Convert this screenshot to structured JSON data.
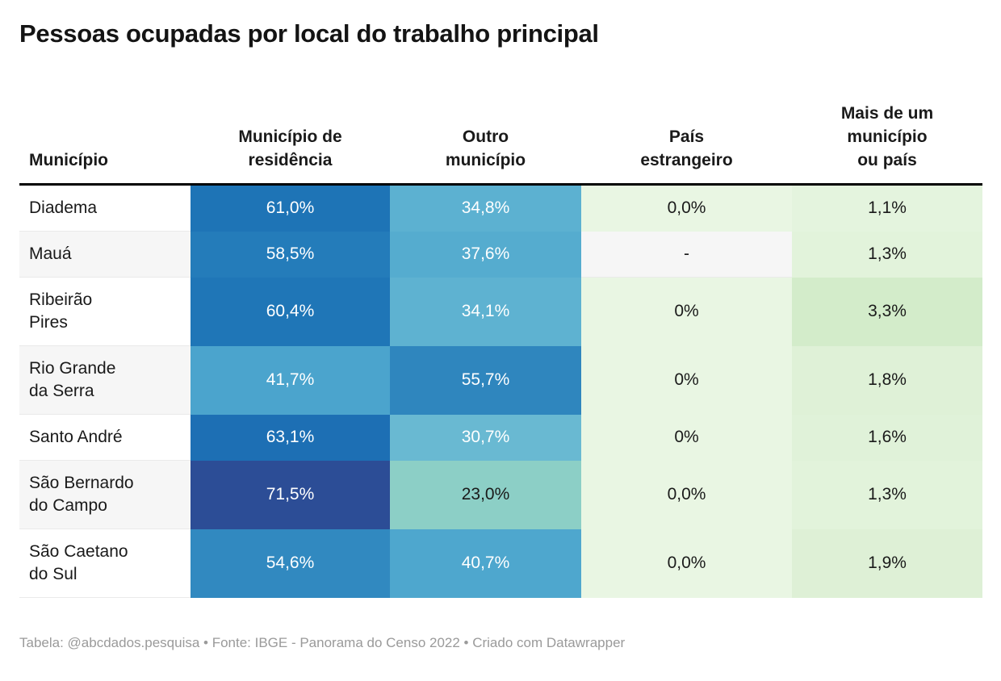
{
  "title": "Pessoas ocupadas por local do trabalho principal",
  "footer": "Tabela: @abcdados.pesquisa • Fonte: IBGE - Panorama do Censo 2022 • Criado com Datawrapper",
  "table": {
    "columns": [
      {
        "label": "Município"
      },
      {
        "label": "Município de\nresidência"
      },
      {
        "label": "Outro\nmunicípio"
      },
      {
        "label": "País\nestrangeiro"
      },
      {
        "label": "Mais de um\nmunicípio\nou país"
      }
    ],
    "rows": [
      {
        "name": "Diadema",
        "cells": [
          {
            "text": "61,0%",
            "bg": "#1e74b6",
            "fg": "#ffffff"
          },
          {
            "text": "34,8%",
            "bg": "#5cb1d1",
            "fg": "#ffffff"
          },
          {
            "text": "0,0%",
            "bg": "#e9f6e3",
            "fg": "#1a1a1a"
          },
          {
            "text": "1,1%",
            "bg": "#e4f4de",
            "fg": "#1a1a1a"
          }
        ]
      },
      {
        "name": "Mauá",
        "cells": [
          {
            "text": "58,5%",
            "bg": "#247cba",
            "fg": "#ffffff"
          },
          {
            "text": "37,6%",
            "bg": "#55accf",
            "fg": "#ffffff"
          },
          {
            "text": "-",
            "bg": null,
            "fg": "#1a1a1a"
          },
          {
            "text": "1,3%",
            "bg": "#e2f3db",
            "fg": "#1a1a1a"
          }
        ]
      },
      {
        "name": "Ribeirão\nPires",
        "cells": [
          {
            "text": "60,4%",
            "bg": "#1f76b7",
            "fg": "#ffffff"
          },
          {
            "text": "34,1%",
            "bg": "#5eb2d1",
            "fg": "#ffffff"
          },
          {
            "text": "0%",
            "bg": "#e9f6e3",
            "fg": "#1a1a1a"
          },
          {
            "text": "3,3%",
            "bg": "#d3ecca",
            "fg": "#1a1a1a"
          }
        ]
      },
      {
        "name": "Rio Grande\nda Serra",
        "cells": [
          {
            "text": "41,7%",
            "bg": "#4ba4cd",
            "fg": "#ffffff"
          },
          {
            "text": "55,7%",
            "bg": "#2f86be",
            "fg": "#ffffff"
          },
          {
            "text": "0%",
            "bg": "#e9f6e3",
            "fg": "#1a1a1a"
          },
          {
            "text": "1,8%",
            "bg": "#dff1d7",
            "fg": "#1a1a1a"
          }
        ]
      },
      {
        "name": "Santo André",
        "cells": [
          {
            "text": "63,1%",
            "bg": "#1d6fb4",
            "fg": "#ffffff"
          },
          {
            "text": "30,7%",
            "bg": "#69b9d2",
            "fg": "#ffffff"
          },
          {
            "text": "0%",
            "bg": "#e9f6e3",
            "fg": "#1a1a1a"
          },
          {
            "text": "1,6%",
            "bg": "#e0f2d9",
            "fg": "#1a1a1a"
          }
        ]
      },
      {
        "name": "São Bernardo\ndo Campo",
        "cells": [
          {
            "text": "71,5%",
            "bg": "#2c4d96",
            "fg": "#ffffff"
          },
          {
            "text": "23,0%",
            "bg": "#8ccfc6",
            "fg": "#1a1a1a"
          },
          {
            "text": "0,0%",
            "bg": "#e9f6e3",
            "fg": "#1a1a1a"
          },
          {
            "text": "1,3%",
            "bg": "#e2f3db",
            "fg": "#1a1a1a"
          }
        ]
      },
      {
        "name": "São Caetano\ndo Sul",
        "cells": [
          {
            "text": "54,6%",
            "bg": "#3189c0",
            "fg": "#ffffff"
          },
          {
            "text": "40,7%",
            "bg": "#4ea7ce",
            "fg": "#ffffff"
          },
          {
            "text": "0,0%",
            "bg": "#e9f6e3",
            "fg": "#1a1a1a"
          },
          {
            "text": "1,9%",
            "bg": "#def0d6",
            "fg": "#1a1a1a"
          }
        ]
      }
    ]
  },
  "colors": {
    "header_rule": "#000000",
    "zebra_stripe": "#f6f6f6",
    "footer_text": "#9a9a9a",
    "scale_dark_blue": "#2c4d96",
    "scale_mid_blue": "#3189c0",
    "scale_teal": "#8ccfc6",
    "scale_light_green": "#e9f6e3"
  },
  "chart_data": {
    "type": "table",
    "title": "Pessoas ocupadas por local do trabalho principal",
    "unit": "%",
    "categories": [
      "Diadema",
      "Mauá",
      "Ribeirão Pires",
      "Rio Grande da Serra",
      "Santo André",
      "São Bernardo do Campo",
      "São Caetano do Sul"
    ],
    "series": [
      {
        "name": "Município de residência",
        "values": [
          61.0,
          58.5,
          60.4,
          41.7,
          63.1,
          71.5,
          54.6
        ]
      },
      {
        "name": "Outro município",
        "values": [
          34.8,
          37.6,
          34.1,
          55.7,
          30.7,
          23.0,
          40.7
        ]
      },
      {
        "name": "País estrangeiro",
        "values": [
          0.0,
          null,
          0,
          0,
          0,
          0.0,
          0.0
        ]
      },
      {
        "name": "Mais de um município ou país",
        "values": [
          1.1,
          1.3,
          3.3,
          1.8,
          1.6,
          1.3,
          1.9
        ]
      }
    ],
    "legend_position": "none",
    "grid": false,
    "notes": "Heatmap-colored table: blue scale for high percentages, green scale for low percentages; '-' indicates missing value for Mauá / País estrangeiro",
    "source": "IBGE - Panorama do Censo 2022",
    "credit": "Tabela: @abcdados.pesquisa • Criado com Datawrapper"
  }
}
